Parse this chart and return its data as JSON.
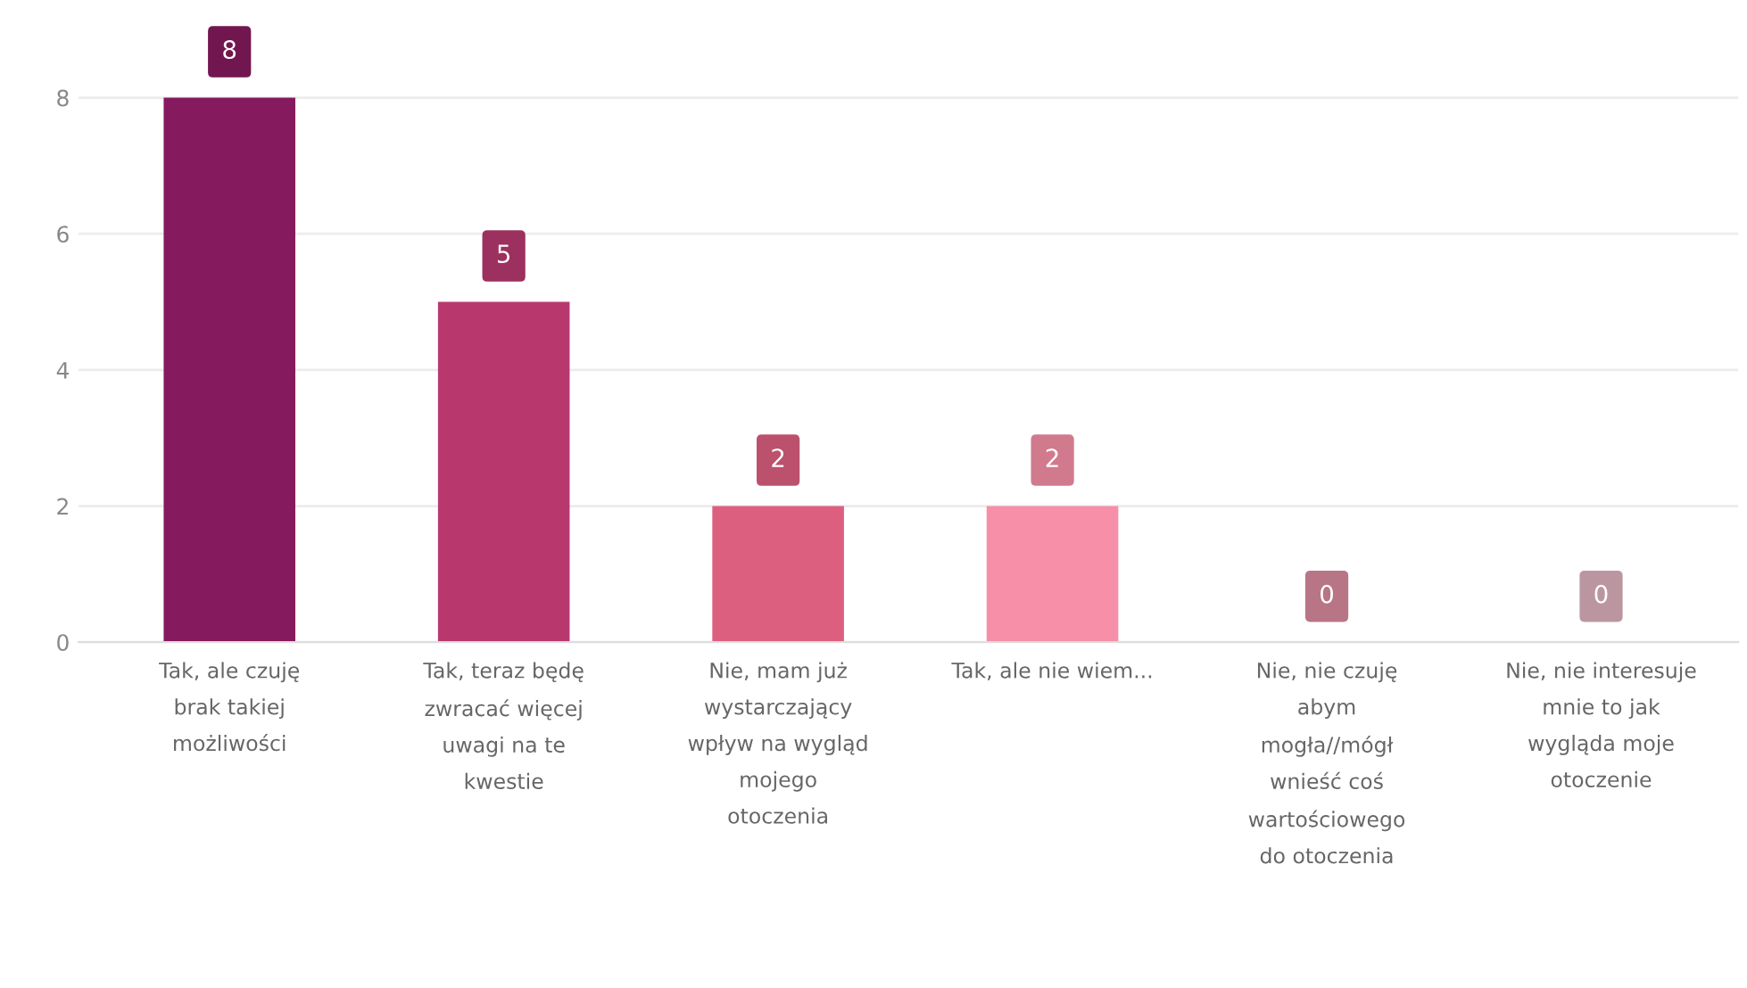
{
  "chart_data": {
    "type": "bar",
    "categories": [
      "Tak, ale czuję\nbrak takiej\nmożliwości",
      "Tak, teraz będę\nzwracać więcej\nuwagi na te\nkwestie",
      "Nie, mam już\nwystarczający\nwpływ na wygląd\nmojego\notoczenia",
      "Tak, ale nie wiem...",
      "Nie, nie czuję\nabym\nmogła//mógł\nwnieść coś\nwartościowego\ndo otoczenia",
      "Nie, nie interesuje\nmnie to jak\nwygląda moje\notoczenie"
    ],
    "values": [
      8,
      5,
      2,
      2,
      0,
      0
    ],
    "colors": [
      "#861a5e",
      "#b8386e",
      "#dc5f80",
      "#f68fa7",
      "#d88a9e",
      "#dcb1bc"
    ],
    "ylim": [
      0,
      9
    ],
    "yticks": [
      0,
      2,
      4,
      6,
      8
    ],
    "grid": "y",
    "data_labels": true
  }
}
